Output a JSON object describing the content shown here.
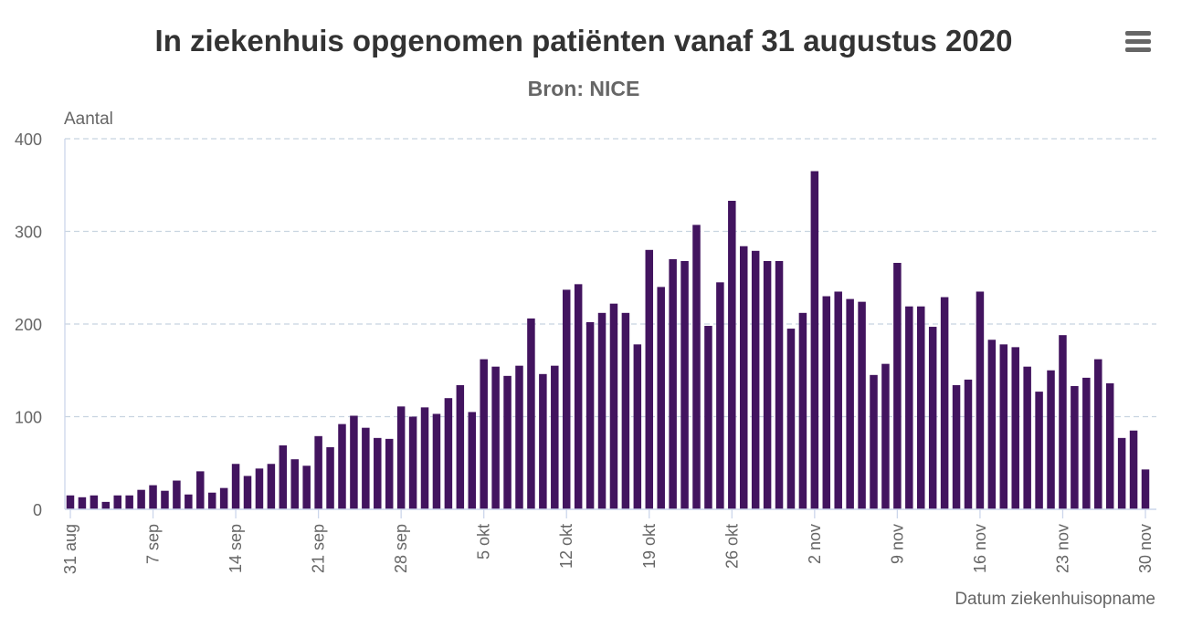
{
  "chart_data": {
    "type": "bar",
    "title": "In ziekenhuis opgenomen patiënten vanaf 31 augustus 2020",
    "subtitle": "Bron: NICE",
    "ylabel": "Aantal",
    "xlabel": "Datum ziekenhuisopname",
    "ylim": [
      0,
      400
    ],
    "yticks": [
      0,
      100,
      200,
      300,
      400
    ],
    "grid": true,
    "bar_color": "#42145f",
    "x_tick_labels": [
      {
        "index": 0,
        "label": "31 aug"
      },
      {
        "index": 7,
        "label": "7 sep"
      },
      {
        "index": 14,
        "label": "14 sep"
      },
      {
        "index": 21,
        "label": "21 sep"
      },
      {
        "index": 28,
        "label": "28 sep"
      },
      {
        "index": 35,
        "label": "5 okt"
      },
      {
        "index": 42,
        "label": "12 okt"
      },
      {
        "index": 49,
        "label": "19 okt"
      },
      {
        "index": 56,
        "label": "26 okt"
      },
      {
        "index": 63,
        "label": "2 nov"
      },
      {
        "index": 70,
        "label": "9 nov"
      },
      {
        "index": 77,
        "label": "16 nov"
      },
      {
        "index": 84,
        "label": "23 nov"
      },
      {
        "index": 91,
        "label": "30 nov"
      }
    ],
    "values": [
      15,
      13,
      15,
      8,
      15,
      15,
      21,
      26,
      20,
      31,
      16,
      41,
      18,
      23,
      49,
      36,
      44,
      49,
      69,
      54,
      47,
      79,
      67,
      92,
      101,
      88,
      77,
      76,
      111,
      100,
      110,
      103,
      120,
      134,
      105,
      162,
      154,
      144,
      155,
      206,
      146,
      155,
      237,
      243,
      202,
      212,
      222,
      212,
      178,
      280,
      240,
      270,
      268,
      307,
      198,
      245,
      333,
      284,
      279,
      268,
      268,
      195,
      212,
      365,
      230,
      235,
      227,
      224,
      145,
      157,
      266,
      219,
      219,
      197,
      229,
      134,
      140,
      235,
      183,
      178,
      175,
      154,
      127,
      150,
      188,
      133,
      142,
      162,
      136,
      77,
      85,
      43
    ]
  },
  "menu": {
    "icon": "hamburger-menu-icon"
  }
}
